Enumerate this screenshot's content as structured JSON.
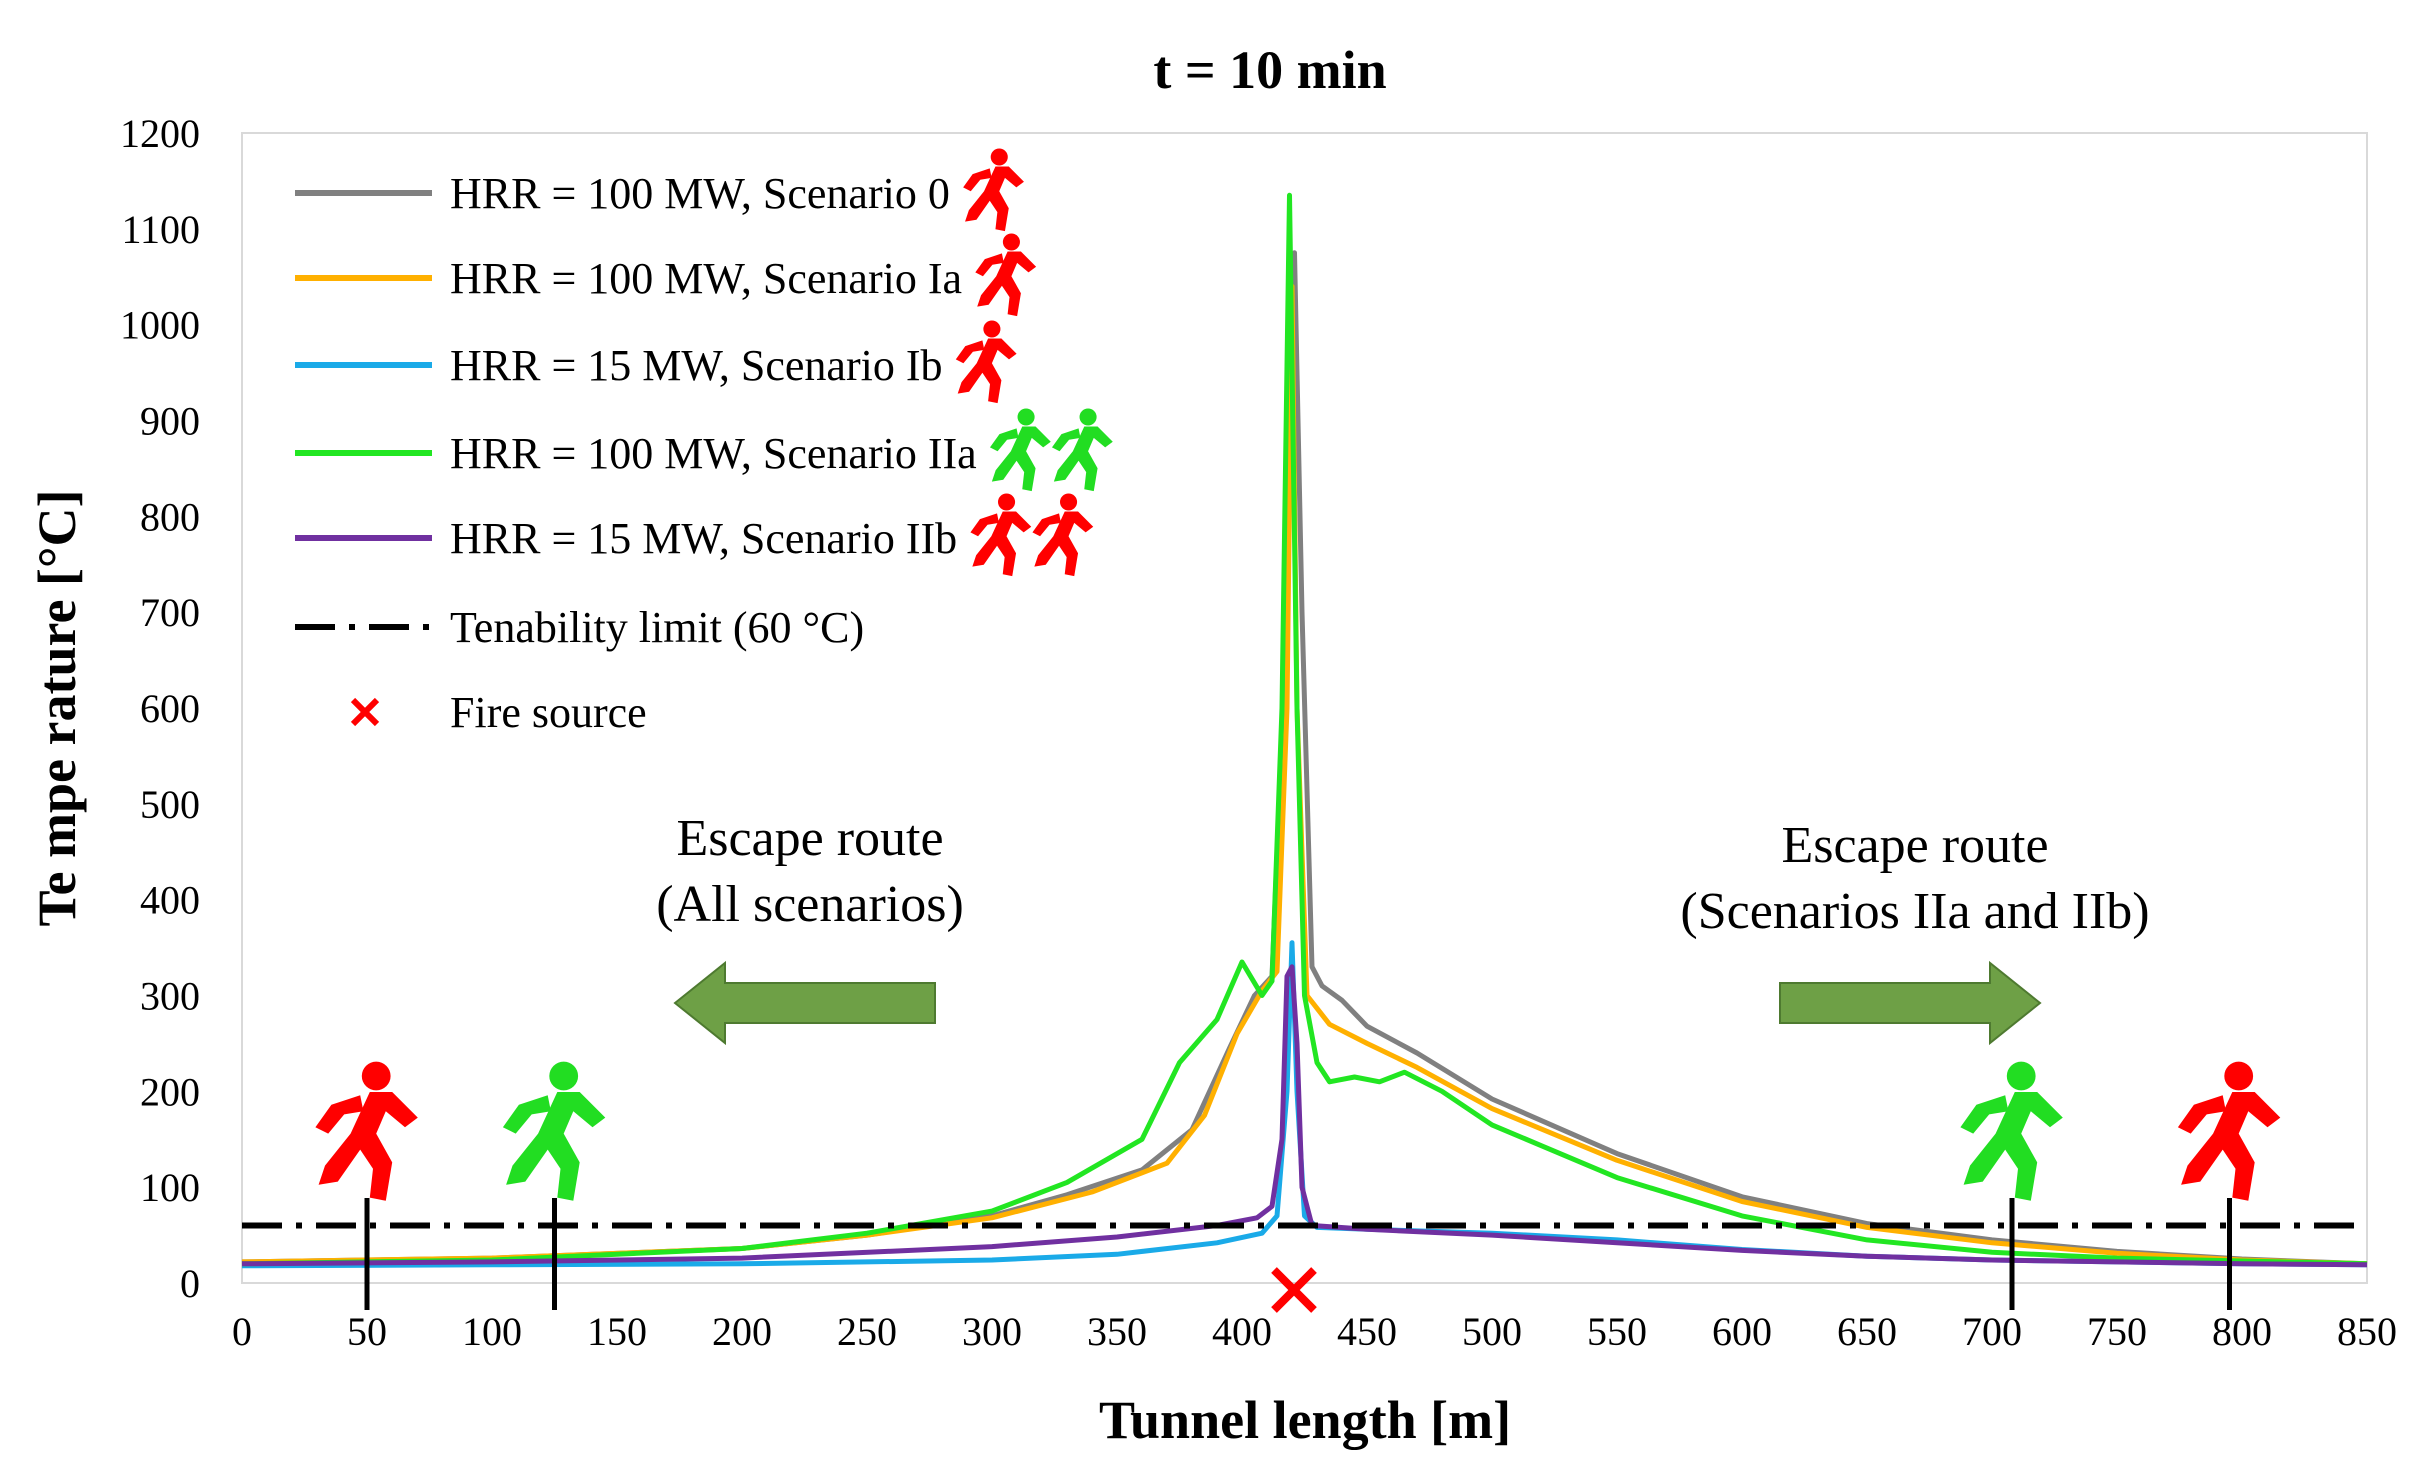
{
  "chart_data": {
    "type": "line",
    "title": "t = 10 min",
    "xlabel": "Tunnel length [m]",
    "ylabel": "Te mpe rature [°C]",
    "xlim": [
      0,
      850
    ],
    "ylim": [
      0,
      1200
    ],
    "x_ticks": [
      0,
      50,
      100,
      150,
      200,
      250,
      300,
      350,
      400,
      450,
      500,
      550,
      600,
      650,
      700,
      750,
      800,
      850
    ],
    "y_ticks": [
      0,
      100,
      200,
      300,
      400,
      500,
      600,
      700,
      800,
      900,
      1000,
      1100,
      1200
    ],
    "grid": false,
    "legend_position": "top-left",
    "series": [
      {
        "name": "HRR = 100 MW, Scenario 0",
        "color": "#808080",
        "icons": [
          "red-runner"
        ],
        "points": [
          [
            0,
            22
          ],
          [
            100,
            26
          ],
          [
            200,
            36
          ],
          [
            250,
            50
          ],
          [
            300,
            70
          ],
          [
            330,
            92
          ],
          [
            360,
            118
          ],
          [
            380,
            160
          ],
          [
            395,
            245
          ],
          [
            405,
            300
          ],
          [
            412,
            320
          ],
          [
            418,
            700
          ],
          [
            421,
            1075
          ],
          [
            424,
            700
          ],
          [
            428,
            330
          ],
          [
            432,
            310
          ],
          [
            440,
            295
          ],
          [
            450,
            268
          ],
          [
            470,
            240
          ],
          [
            500,
            192
          ],
          [
            550,
            135
          ],
          [
            600,
            90
          ],
          [
            650,
            62
          ],
          [
            700,
            45
          ],
          [
            750,
            33
          ],
          [
            800,
            25
          ],
          [
            850,
            20
          ]
        ]
      },
      {
        "name": "HRR = 100 MW, Scenario Ia",
        "color": "#FFB000",
        "icons": [
          "red-runner"
        ],
        "points": [
          [
            0,
            22
          ],
          [
            100,
            26
          ],
          [
            200,
            36
          ],
          [
            250,
            50
          ],
          [
            300,
            68
          ],
          [
            340,
            95
          ],
          [
            370,
            125
          ],
          [
            385,
            175
          ],
          [
            398,
            260
          ],
          [
            408,
            305
          ],
          [
            414,
            325
          ],
          [
            418,
            600
          ],
          [
            420,
            1040
          ],
          [
            422,
            600
          ],
          [
            426,
            300
          ],
          [
            435,
            270
          ],
          [
            450,
            250
          ],
          [
            470,
            225
          ],
          [
            500,
            182
          ],
          [
            550,
            128
          ],
          [
            600,
            85
          ],
          [
            650,
            58
          ],
          [
            700,
            42
          ],
          [
            750,
            31
          ],
          [
            800,
            24
          ],
          [
            850,
            20
          ]
        ]
      },
      {
        "name": "HRR = 15 MW, Scenario Ib",
        "color": "#1AAAE8",
        "icons": [
          "red-runner"
        ],
        "points": [
          [
            0,
            18
          ],
          [
            100,
            19
          ],
          [
            200,
            20
          ],
          [
            300,
            24
          ],
          [
            350,
            30
          ],
          [
            390,
            42
          ],
          [
            408,
            52
          ],
          [
            414,
            70
          ],
          [
            418,
            200
          ],
          [
            420,
            355
          ],
          [
            422,
            200
          ],
          [
            425,
            70
          ],
          [
            430,
            58
          ],
          [
            450,
            56
          ],
          [
            500,
            52
          ],
          [
            550,
            45
          ],
          [
            600,
            35
          ],
          [
            650,
            28
          ],
          [
            700,
            24
          ],
          [
            750,
            22
          ],
          [
            800,
            20
          ],
          [
            850,
            19
          ]
        ]
      },
      {
        "name": "HRR = 100 MW, Scenario IIa",
        "color": "#22E622",
        "icons": [
          "green-runner",
          "green-runner"
        ],
        "points": [
          [
            0,
            20
          ],
          [
            100,
            24
          ],
          [
            200,
            36
          ],
          [
            250,
            52
          ],
          [
            300,
            75
          ],
          [
            330,
            105
          ],
          [
            360,
            150
          ],
          [
            375,
            230
          ],
          [
            390,
            275
          ],
          [
            400,
            335
          ],
          [
            408,
            300
          ],
          [
            412,
            315
          ],
          [
            416,
            600
          ],
          [
            419,
            1135
          ],
          [
            422,
            600
          ],
          [
            425,
            300
          ],
          [
            430,
            230
          ],
          [
            435,
            210
          ],
          [
            445,
            215
          ],
          [
            455,
            210
          ],
          [
            465,
            220
          ],
          [
            480,
            200
          ],
          [
            500,
            165
          ],
          [
            550,
            110
          ],
          [
            600,
            70
          ],
          [
            650,
            45
          ],
          [
            700,
            32
          ],
          [
            750,
            26
          ],
          [
            800,
            23
          ],
          [
            850,
            20
          ]
        ]
      },
      {
        "name": "HRR = 15 MW, Scenario IIb",
        "color": "#7030A0",
        "icons": [
          "red-runner",
          "red-runner"
        ],
        "points": [
          [
            0,
            20
          ],
          [
            100,
            22
          ],
          [
            200,
            26
          ],
          [
            300,
            38
          ],
          [
            350,
            48
          ],
          [
            390,
            60
          ],
          [
            406,
            68
          ],
          [
            412,
            80
          ],
          [
            416,
            150
          ],
          [
            418,
            320
          ],
          [
            420,
            330
          ],
          [
            422,
            250
          ],
          [
            424,
            100
          ],
          [
            428,
            60
          ],
          [
            450,
            56
          ],
          [
            500,
            50
          ],
          [
            550,
            42
          ],
          [
            600,
            34
          ],
          [
            650,
            28
          ],
          [
            700,
            24
          ],
          [
            750,
            22
          ],
          [
            800,
            20
          ],
          [
            850,
            19
          ]
        ]
      },
      {
        "name": "Tenability limit (60 °C)",
        "color": "#000000",
        "style": "dash-dot",
        "points": [
          [
            0,
            60
          ],
          [
            850,
            60
          ]
        ]
      }
    ],
    "fire_source": {
      "label": "Fire source",
      "x": 420,
      "y": 0,
      "color": "#FF0000"
    },
    "markers": [
      {
        "x": 50,
        "runner": "red"
      },
      {
        "x": 125,
        "runner": "green"
      },
      {
        "x": 708,
        "runner": "green"
      },
      {
        "x": 795,
        "runner": "red"
      }
    ],
    "annotations": [
      {
        "line1": "Escape route",
        "line2": "(All scenarios)",
        "arrow": "left"
      },
      {
        "line1": "Escape route",
        "line2": "(Scenarios IIa and IIb)",
        "arrow": "right"
      }
    ]
  }
}
